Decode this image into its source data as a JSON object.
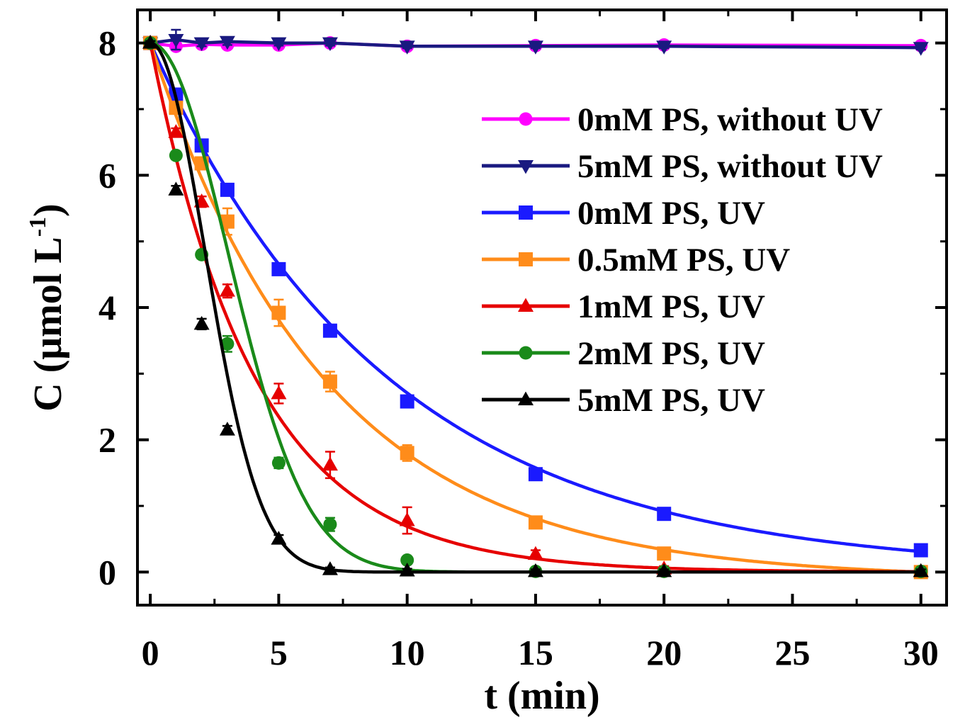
{
  "chart_data": {
    "type": "line",
    "title": "",
    "xlabel": "t (min)",
    "ylabel_main": "C (μmol L",
    "ylabel_sup": "-1",
    "ylabel_close": ")",
    "xlim": [
      -0.5,
      31
    ],
    "ylim": [
      -0.5,
      8.5
    ],
    "xticks": [
      0,
      5,
      10,
      15,
      20,
      25,
      30
    ],
    "xtick_labels": [
      "0",
      "5",
      "10",
      "15",
      "20",
      "25",
      "30"
    ],
    "yticks": [
      0,
      2,
      4,
      6,
      8
    ],
    "ytick_labels": [
      "0",
      "2",
      "4",
      "6",
      "8"
    ],
    "x": [
      0,
      1,
      2,
      3,
      5,
      7,
      10,
      15,
      20,
      30
    ],
    "legend_position": "top-right",
    "series": [
      {
        "name": "0mM PS, without UV",
        "color": "#ff00ff",
        "marker": "circle",
        "fit": "flat",
        "values": [
          8.0,
          7.95,
          7.98,
          7.97,
          7.97,
          8.0,
          7.95,
          7.96,
          7.97,
          7.96
        ],
        "errors": [
          0.03,
          0.04,
          0.04,
          0.04,
          0.04,
          0.03,
          0.03,
          0.03,
          0.03,
          0.03
        ]
      },
      {
        "name": "5mM PS, without UV",
        "color": "#1a1a80",
        "marker": "triangle-down",
        "fit": "flat",
        "values": [
          8.0,
          8.05,
          8.0,
          8.02,
          8.0,
          8.0,
          7.95,
          7.95,
          7.95,
          7.93
        ],
        "errors": [
          0.03,
          0.15,
          0.05,
          0.05,
          0.04,
          0.04,
          0.03,
          0.03,
          0.03,
          0.03
        ]
      },
      {
        "name": "0mM PS, UV",
        "color": "#1a1aff",
        "marker": "square",
        "fit": "exp",
        "k": 0.1083,
        "values": [
          8.0,
          7.22,
          6.45,
          5.78,
          4.58,
          3.65,
          2.58,
          1.48,
          0.88,
          0.33
        ],
        "errors": [
          0.03,
          0.06,
          0.06,
          0.06,
          0.06,
          0.06,
          0.08,
          0.06,
          0.06,
          0.05
        ]
      },
      {
        "name": "0.5mM PS, UV",
        "color": "#ff8c1a",
        "marker": "square",
        "fit": "exp0",
        "k": 0.1455,
        "values": [
          8.0,
          7.02,
          6.18,
          5.3,
          3.92,
          2.88,
          1.8,
          0.75,
          0.28,
          0.0
        ],
        "errors": [
          0.03,
          0.08,
          0.08,
          0.2,
          0.2,
          0.15,
          0.12,
          0.06,
          0.05,
          0.03
        ]
      },
      {
        "name": "1mM PS, UV",
        "color": "#e60000",
        "marker": "triangle",
        "fit": "exp",
        "k": 0.245,
        "values": [
          8.0,
          6.65,
          5.6,
          4.25,
          2.7,
          1.62,
          0.78,
          0.27,
          0.05,
          0.01
        ],
        "errors": [
          0.03,
          0.06,
          0.08,
          0.1,
          0.15,
          0.2,
          0.2,
          0.06,
          0.04,
          0.03
        ]
      },
      {
        "name": "2mM PS, UV",
        "color": "#1a8a1a",
        "marker": "circle",
        "fit": "exp2",
        "k": 0.055,
        "values": [
          8.0,
          6.3,
          4.8,
          3.45,
          1.65,
          0.72,
          0.18,
          0.01,
          0.01,
          0.01
        ],
        "errors": [
          0.03,
          0.06,
          0.06,
          0.12,
          0.08,
          0.1,
          0.05,
          0.03,
          0.03,
          0.03
        ]
      },
      {
        "name": "5mM PS, UV",
        "color": "#000000",
        "marker": "triangle",
        "fit": "exp2",
        "k": 0.11,
        "values": [
          8.0,
          5.78,
          3.75,
          2.15,
          0.5,
          0.04,
          0.02,
          0.01,
          0.01,
          0.01
        ],
        "errors": [
          0.03,
          0.06,
          0.08,
          0.06,
          0.06,
          0.03,
          0.03,
          0.03,
          0.03,
          0.03
        ]
      }
    ]
  }
}
